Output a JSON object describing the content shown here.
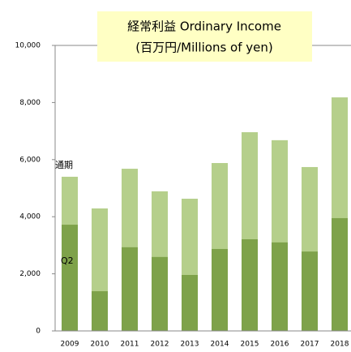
{
  "chart_data": {
    "type": "bar",
    "title": "経常利益  Ordinary Income",
    "subtitle": "(百万円/Millions of yen)",
    "categories": [
      "2009",
      "2010",
      "2011",
      "2012",
      "2013",
      "2014",
      "2015",
      "2016",
      "2017",
      "2018"
    ],
    "series": [
      {
        "name": "通期",
        "color": "#b5cf8b",
        "values": [
          5400,
          4290,
          5680,
          4890,
          4630,
          5880,
          6960,
          6680,
          5740,
          8180
        ]
      },
      {
        "name": "Q2",
        "color": "#7ea24a",
        "values": [
          3720,
          1390,
          2930,
          2590,
          1960,
          2870,
          3210,
          3100,
          2780,
          3950
        ]
      }
    ],
    "ylim": [
      0,
      10000
    ],
    "yticks": [
      0,
      {
        "value": 2000,
        "label": "2,000"
      },
      {
        "value": 4000,
        "label": "4,000"
      },
      {
        "value": 6000,
        "label": "6,000"
      },
      {
        "value": 8000,
        "label": "8,000"
      },
      {
        "value": 10000,
        "label": "10,000"
      }
    ],
    "grid": false
  }
}
